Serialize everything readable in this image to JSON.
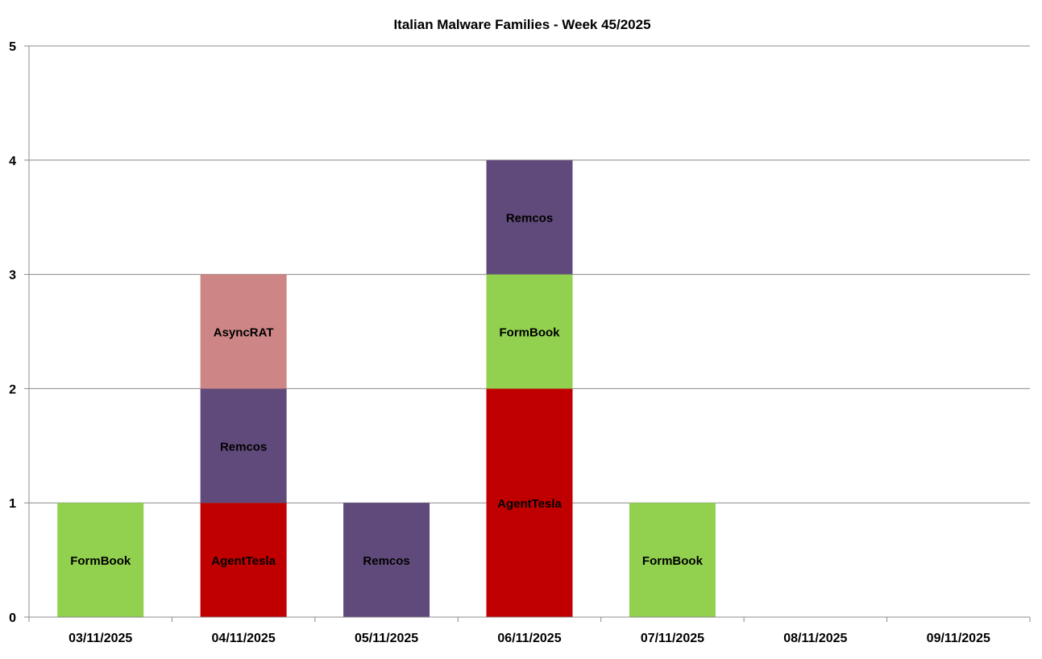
{
  "chart_data": {
    "type": "bar",
    "stacked": true,
    "title": "Italian Malware Families - Week 45/2025",
    "xlabel": "",
    "ylabel": "",
    "ylim": [
      0,
      5
    ],
    "yticks": [
      0,
      1,
      2,
      3,
      4,
      5
    ],
    "grid": true,
    "legend": "none",
    "categories": [
      "03/11/2025",
      "04/11/2025",
      "05/11/2025",
      "06/11/2025",
      "07/11/2025",
      "08/11/2025",
      "09/11/2025"
    ],
    "colors": {
      "AgentTesla": "#c00000",
      "Remcos": "#604a7b",
      "AsyncRAT": "#cd8585",
      "FormBook": "#92d050"
    },
    "stacks": [
      [
        {
          "family": "FormBook",
          "value": 1
        }
      ],
      [
        {
          "family": "AgentTesla",
          "value": 1
        },
        {
          "family": "Remcos",
          "value": 1
        },
        {
          "family": "AsyncRAT",
          "value": 1
        }
      ],
      [
        {
          "family": "Remcos",
          "value": 1
        }
      ],
      [
        {
          "family": "AgentTesla",
          "value": 2
        },
        {
          "family": "FormBook",
          "value": 1
        },
        {
          "family": "Remcos",
          "value": 1
        }
      ],
      [
        {
          "family": "FormBook",
          "value": 1
        }
      ],
      [],
      []
    ]
  }
}
